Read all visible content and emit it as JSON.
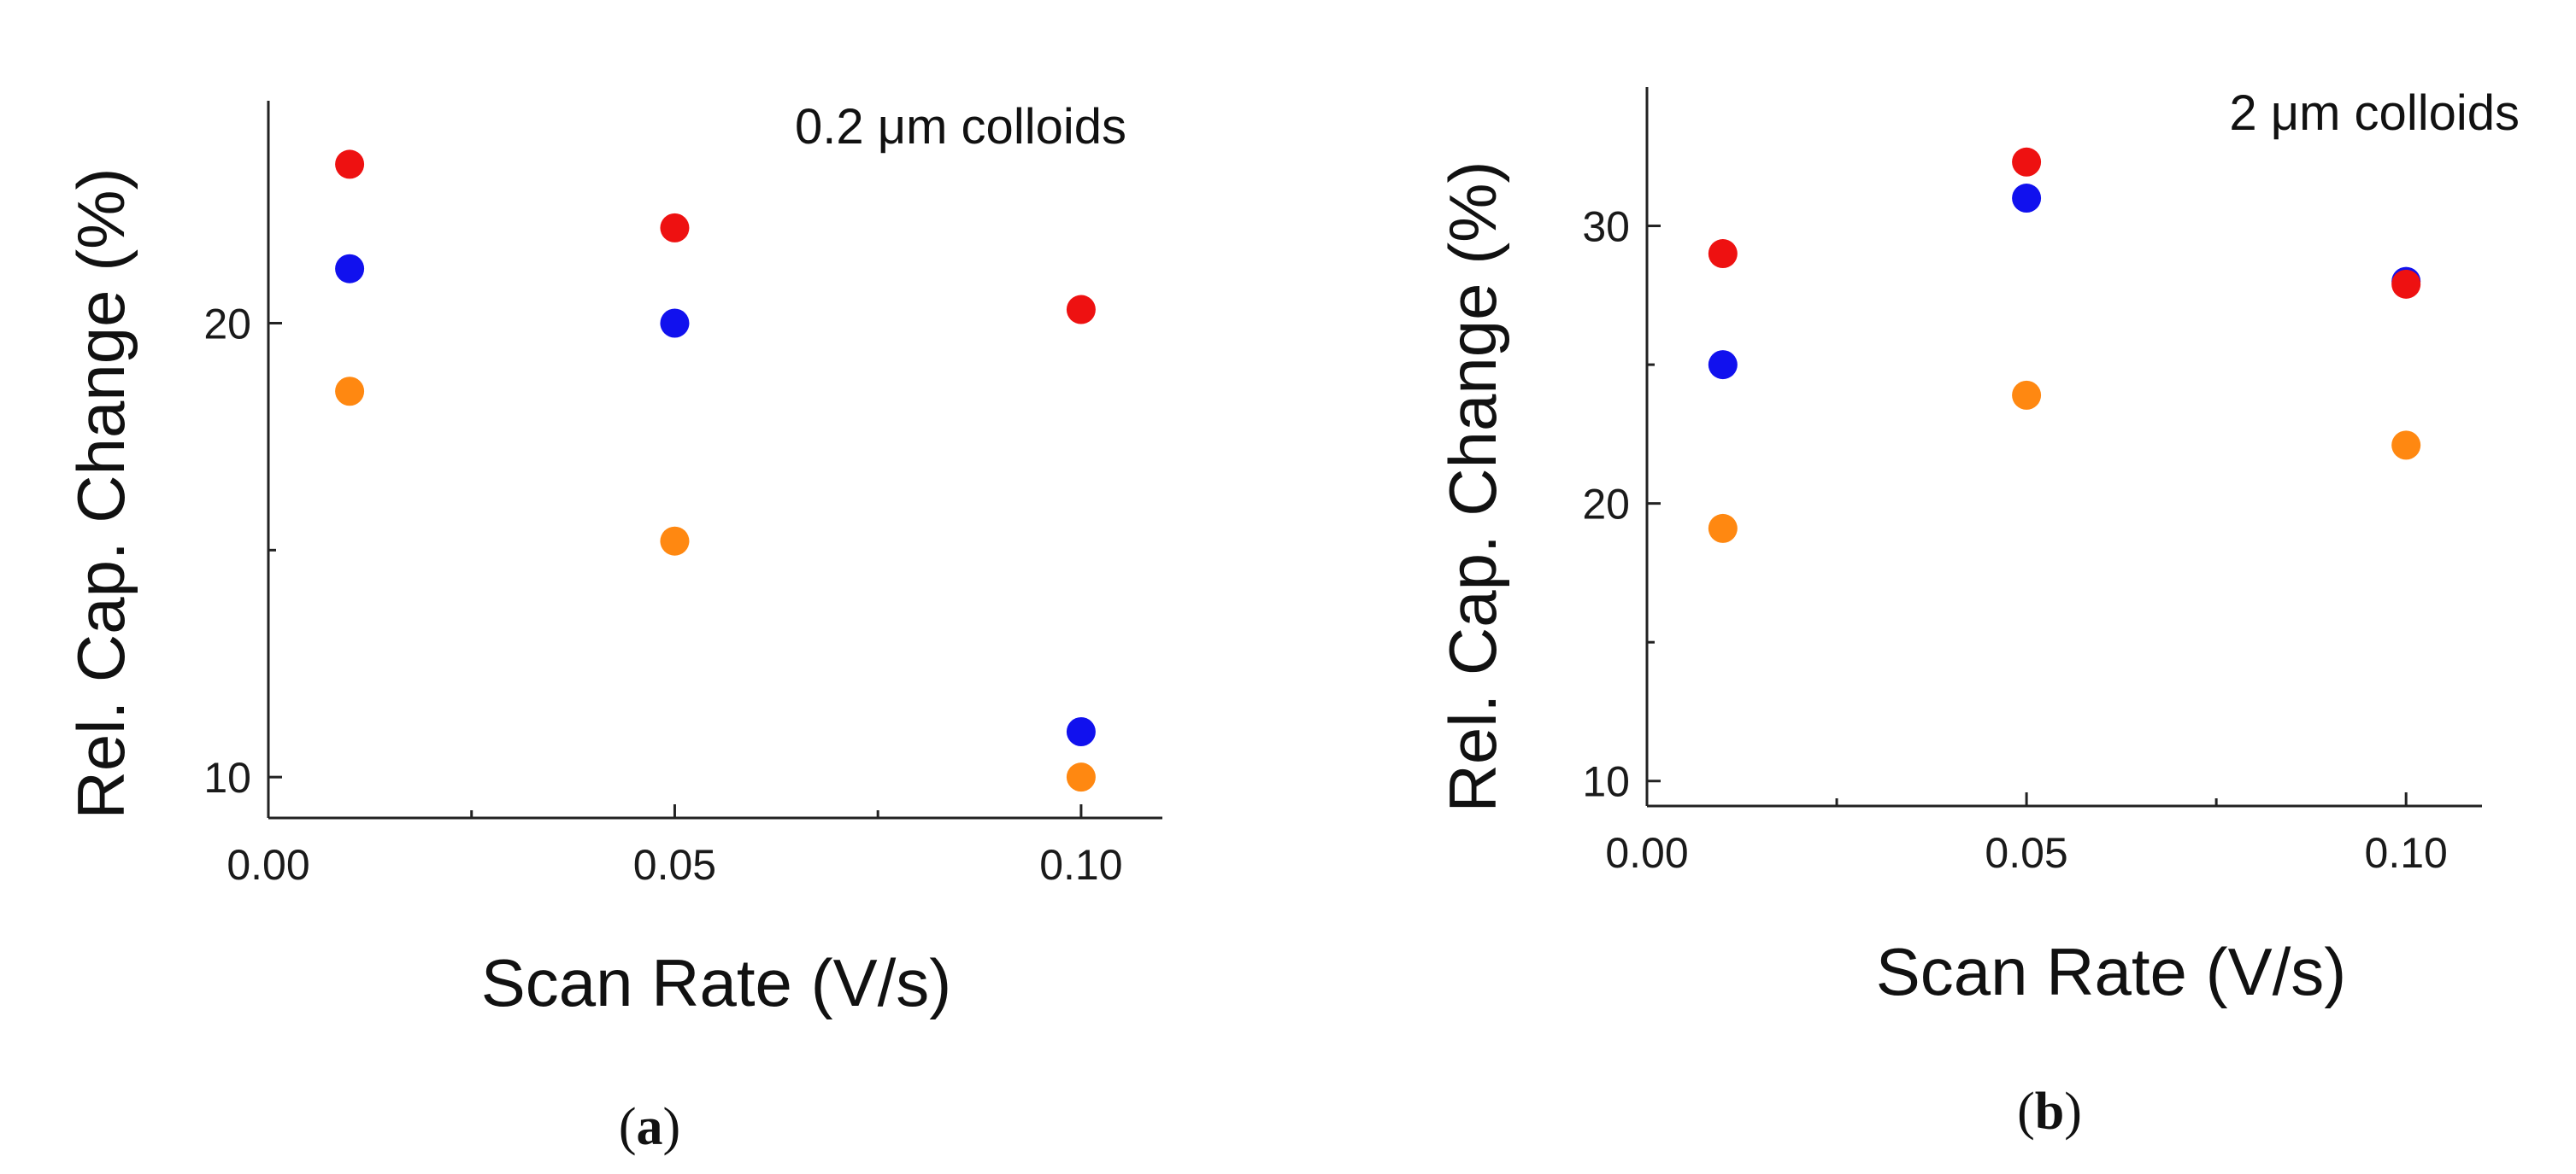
{
  "colors": {
    "red": "#ee1111",
    "blue": "#1111ee",
    "orange": "#ff8811",
    "axis": "#222222"
  },
  "chart_data": [
    {
      "type": "scatter",
      "panel_label_open": "(",
      "panel_label_letter": "a",
      "panel_label_close": ")",
      "annotation": "0.2 μm colloids",
      "xlabel": "Scan Rate (V/s)",
      "ylabel": "Rel. Cap. Change (%)",
      "xlim": [
        0.0,
        0.11
      ],
      "ylim": [
        9.1,
        24.9
      ],
      "xticks": [
        0.0,
        0.05,
        0.1
      ],
      "xtick_labels": [
        "0.00",
        "0.05",
        "0.10"
      ],
      "xminor": [
        0.025,
        0.075
      ],
      "yticks": [
        10,
        20
      ],
      "ytick_labels": [
        "10",
        "20"
      ],
      "yminor": [
        15
      ],
      "x": [
        0.01,
        0.05,
        0.1
      ],
      "series": [
        {
          "name": "red",
          "color": "#ee1111",
          "values": [
            23.5,
            22.1,
            20.3
          ]
        },
        {
          "name": "blue",
          "color": "#1111ee",
          "values": [
            21.2,
            20.0,
            11.0
          ]
        },
        {
          "name": "orange",
          "color": "#ff8811",
          "values": [
            18.5,
            15.2,
            10.0
          ]
        }
      ]
    },
    {
      "type": "scatter",
      "panel_label_open": "(",
      "panel_label_letter": "b",
      "panel_label_close": ")",
      "annotation": "2 μm colloids",
      "xlabel": "Scan Rate (V/s)",
      "ylabel": "Rel. Cap. Change (%)",
      "xlim": [
        0.0,
        0.11
      ],
      "ylim": [
        9.1,
        35.0
      ],
      "xticks": [
        0.0,
        0.05,
        0.1
      ],
      "xtick_labels": [
        "0.00",
        "0.05",
        "0.10"
      ],
      "xminor": [
        0.025,
        0.075
      ],
      "yticks": [
        10,
        20,
        30
      ],
      "ytick_labels": [
        "10",
        "20",
        "30"
      ],
      "yminor": [
        15,
        25
      ],
      "x": [
        0.01,
        0.05,
        0.1
      ],
      "series": [
        {
          "name": "red",
          "color": "#ee1111",
          "values": [
            29.0,
            32.3,
            27.9
          ]
        },
        {
          "name": "blue",
          "color": "#1111ee",
          "values": [
            25.0,
            31.0,
            28.0
          ]
        },
        {
          "name": "orange",
          "color": "#ff8811",
          "values": [
            19.1,
            23.9,
            22.1
          ]
        }
      ]
    }
  ]
}
